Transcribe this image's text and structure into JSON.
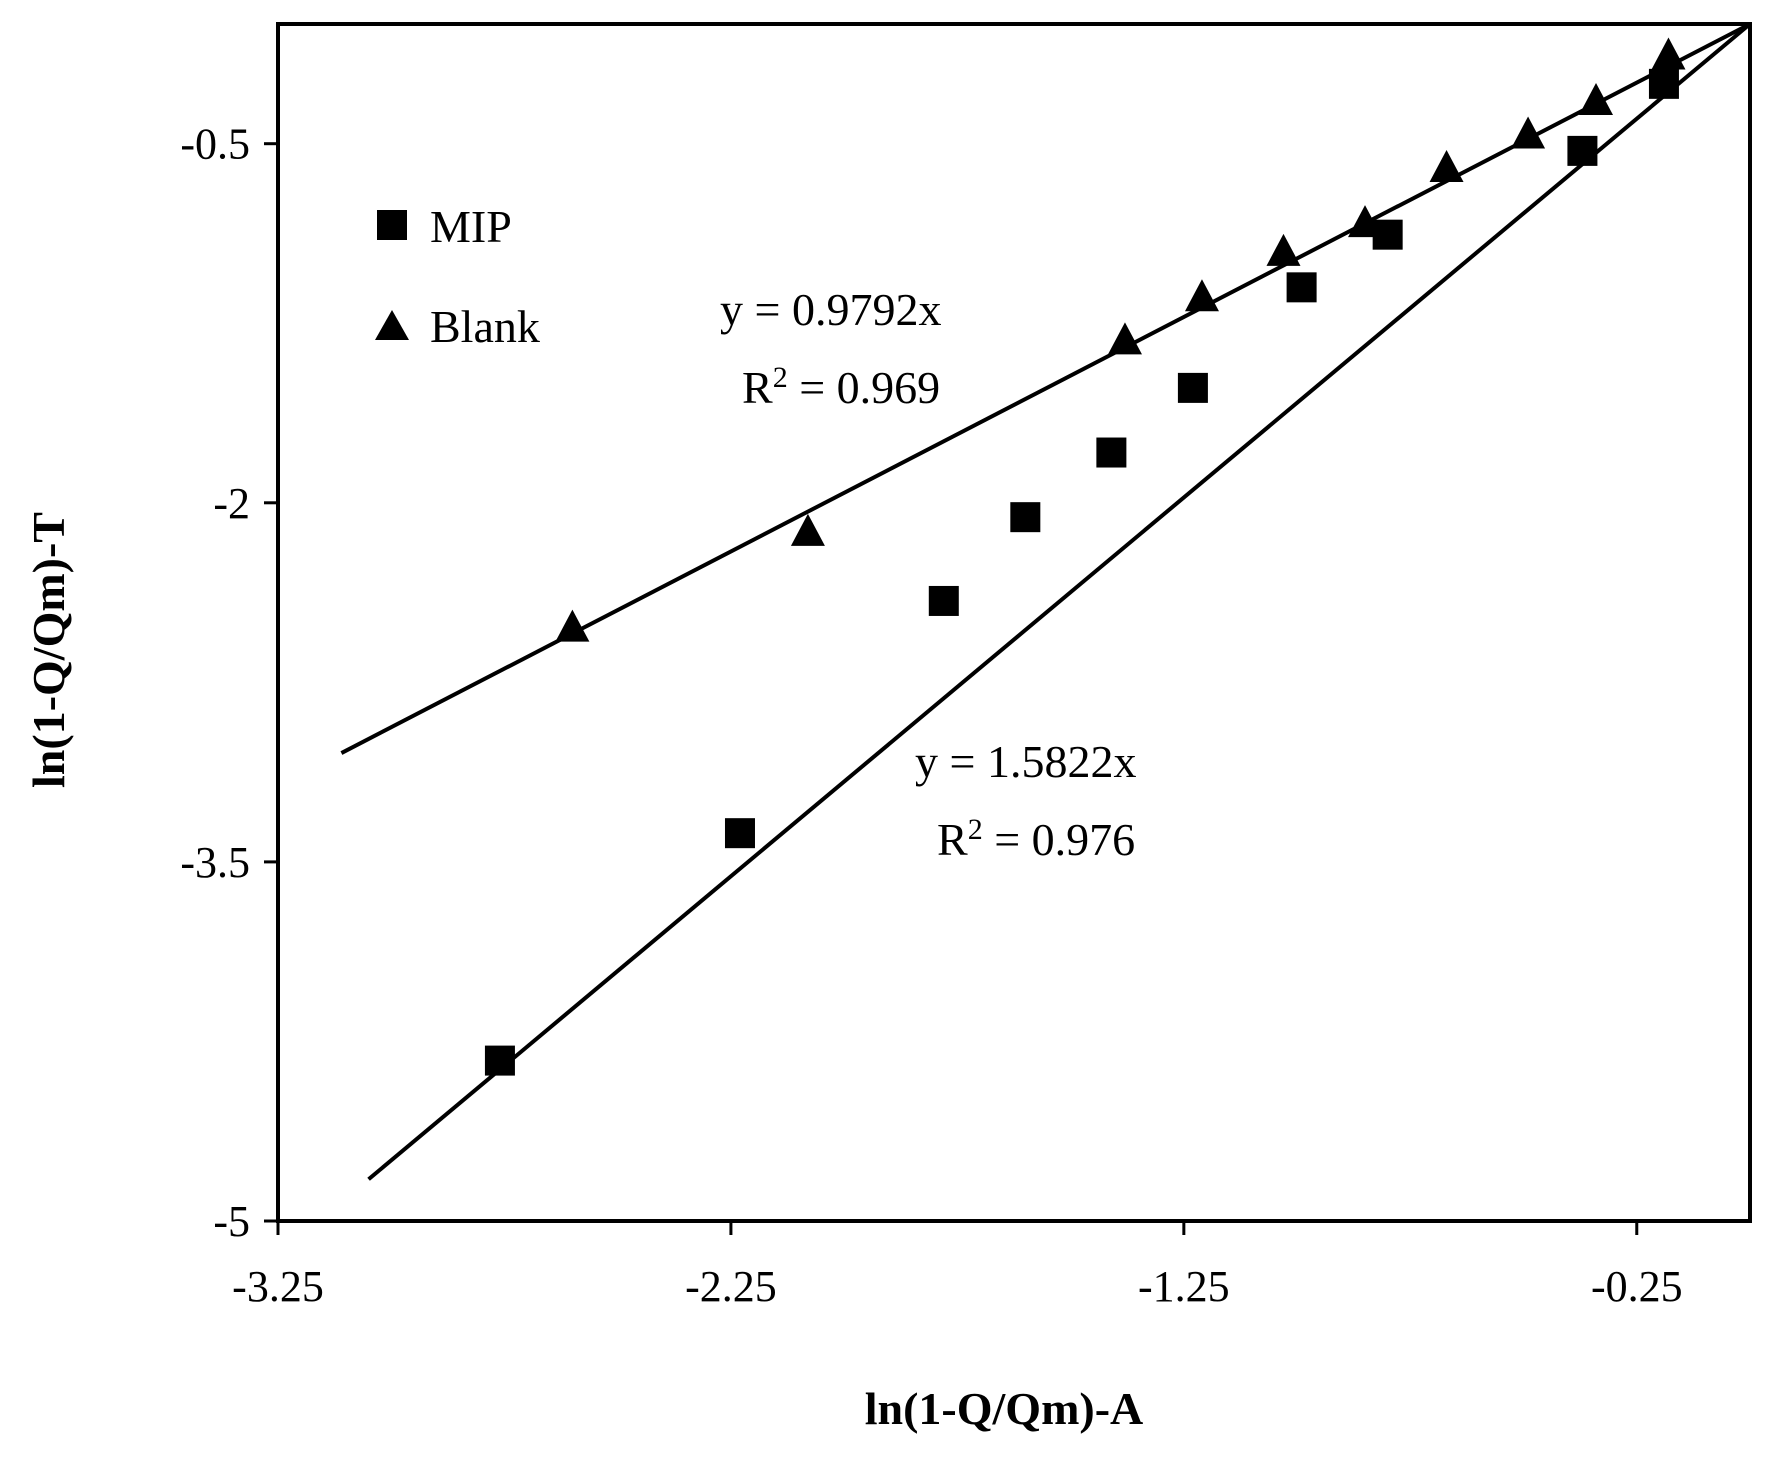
{
  "chart_data": {
    "type": "scatter",
    "xlabel": "ln(1-Q/Qm)-A",
    "ylabel": "ln(1-Q/Qm)-T",
    "xlim": [
      -3.25,
      0
    ],
    "ylim": [
      -5,
      0
    ],
    "xticks": [
      -3.25,
      -2.25,
      -1.25,
      -0.25
    ],
    "xtick_labels": [
      "-3.25",
      "-2.25",
      "-1.25",
      "-0.25"
    ],
    "yticks": [
      -5,
      -3.5,
      -2,
      -0.5
    ],
    "ytick_labels": [
      "-5",
      "-3.5",
      "-2",
      "-0.5"
    ],
    "grid": false,
    "legend_position": "top-left",
    "series": [
      {
        "name": "MIP",
        "marker": "square",
        "trendline": {
          "slope": 1.5822,
          "x_range": [
            -3.05,
            0
          ]
        },
        "equation": "y = 1.5822x",
        "r2_prefix": "R",
        "r2_exp": "2",
        "r2_value": " = 0.976",
        "points": [
          {
            "x": -2.76,
            "y": -4.33
          },
          {
            "x": -2.23,
            "y": -3.38
          },
          {
            "x": -1.78,
            "y": -2.41
          },
          {
            "x": -1.6,
            "y": -2.06
          },
          {
            "x": -1.41,
            "y": -1.79
          },
          {
            "x": -1.23,
            "y": -1.52
          },
          {
            "x": -0.99,
            "y": -1.1
          },
          {
            "x": -0.8,
            "y": -0.88
          },
          {
            "x": -0.37,
            "y": -0.53
          },
          {
            "x": -0.19,
            "y": -0.25
          }
        ]
      },
      {
        "name": "Blank",
        "marker": "triangle",
        "trendline": {
          "slope": 0.9792,
          "x_range": [
            -3.11,
            0
          ]
        },
        "equation": "y = 0.9792x",
        "r2_prefix": "R",
        "r2_exp": "2",
        "r2_value": " = 0.969",
        "points": [
          {
            "x": -2.6,
            "y": -2.53
          },
          {
            "x": -2.08,
            "y": -2.13
          },
          {
            "x": -1.38,
            "y": -1.33
          },
          {
            "x": -1.21,
            "y": -1.15
          },
          {
            "x": -1.03,
            "y": -0.96
          },
          {
            "x": -0.85,
            "y": -0.84
          },
          {
            "x": -0.67,
            "y": -0.61
          },
          {
            "x": -0.49,
            "y": -0.47
          },
          {
            "x": -0.34,
            "y": -0.33
          },
          {
            "x": -0.18,
            "y": -0.14
          }
        ]
      }
    ]
  }
}
